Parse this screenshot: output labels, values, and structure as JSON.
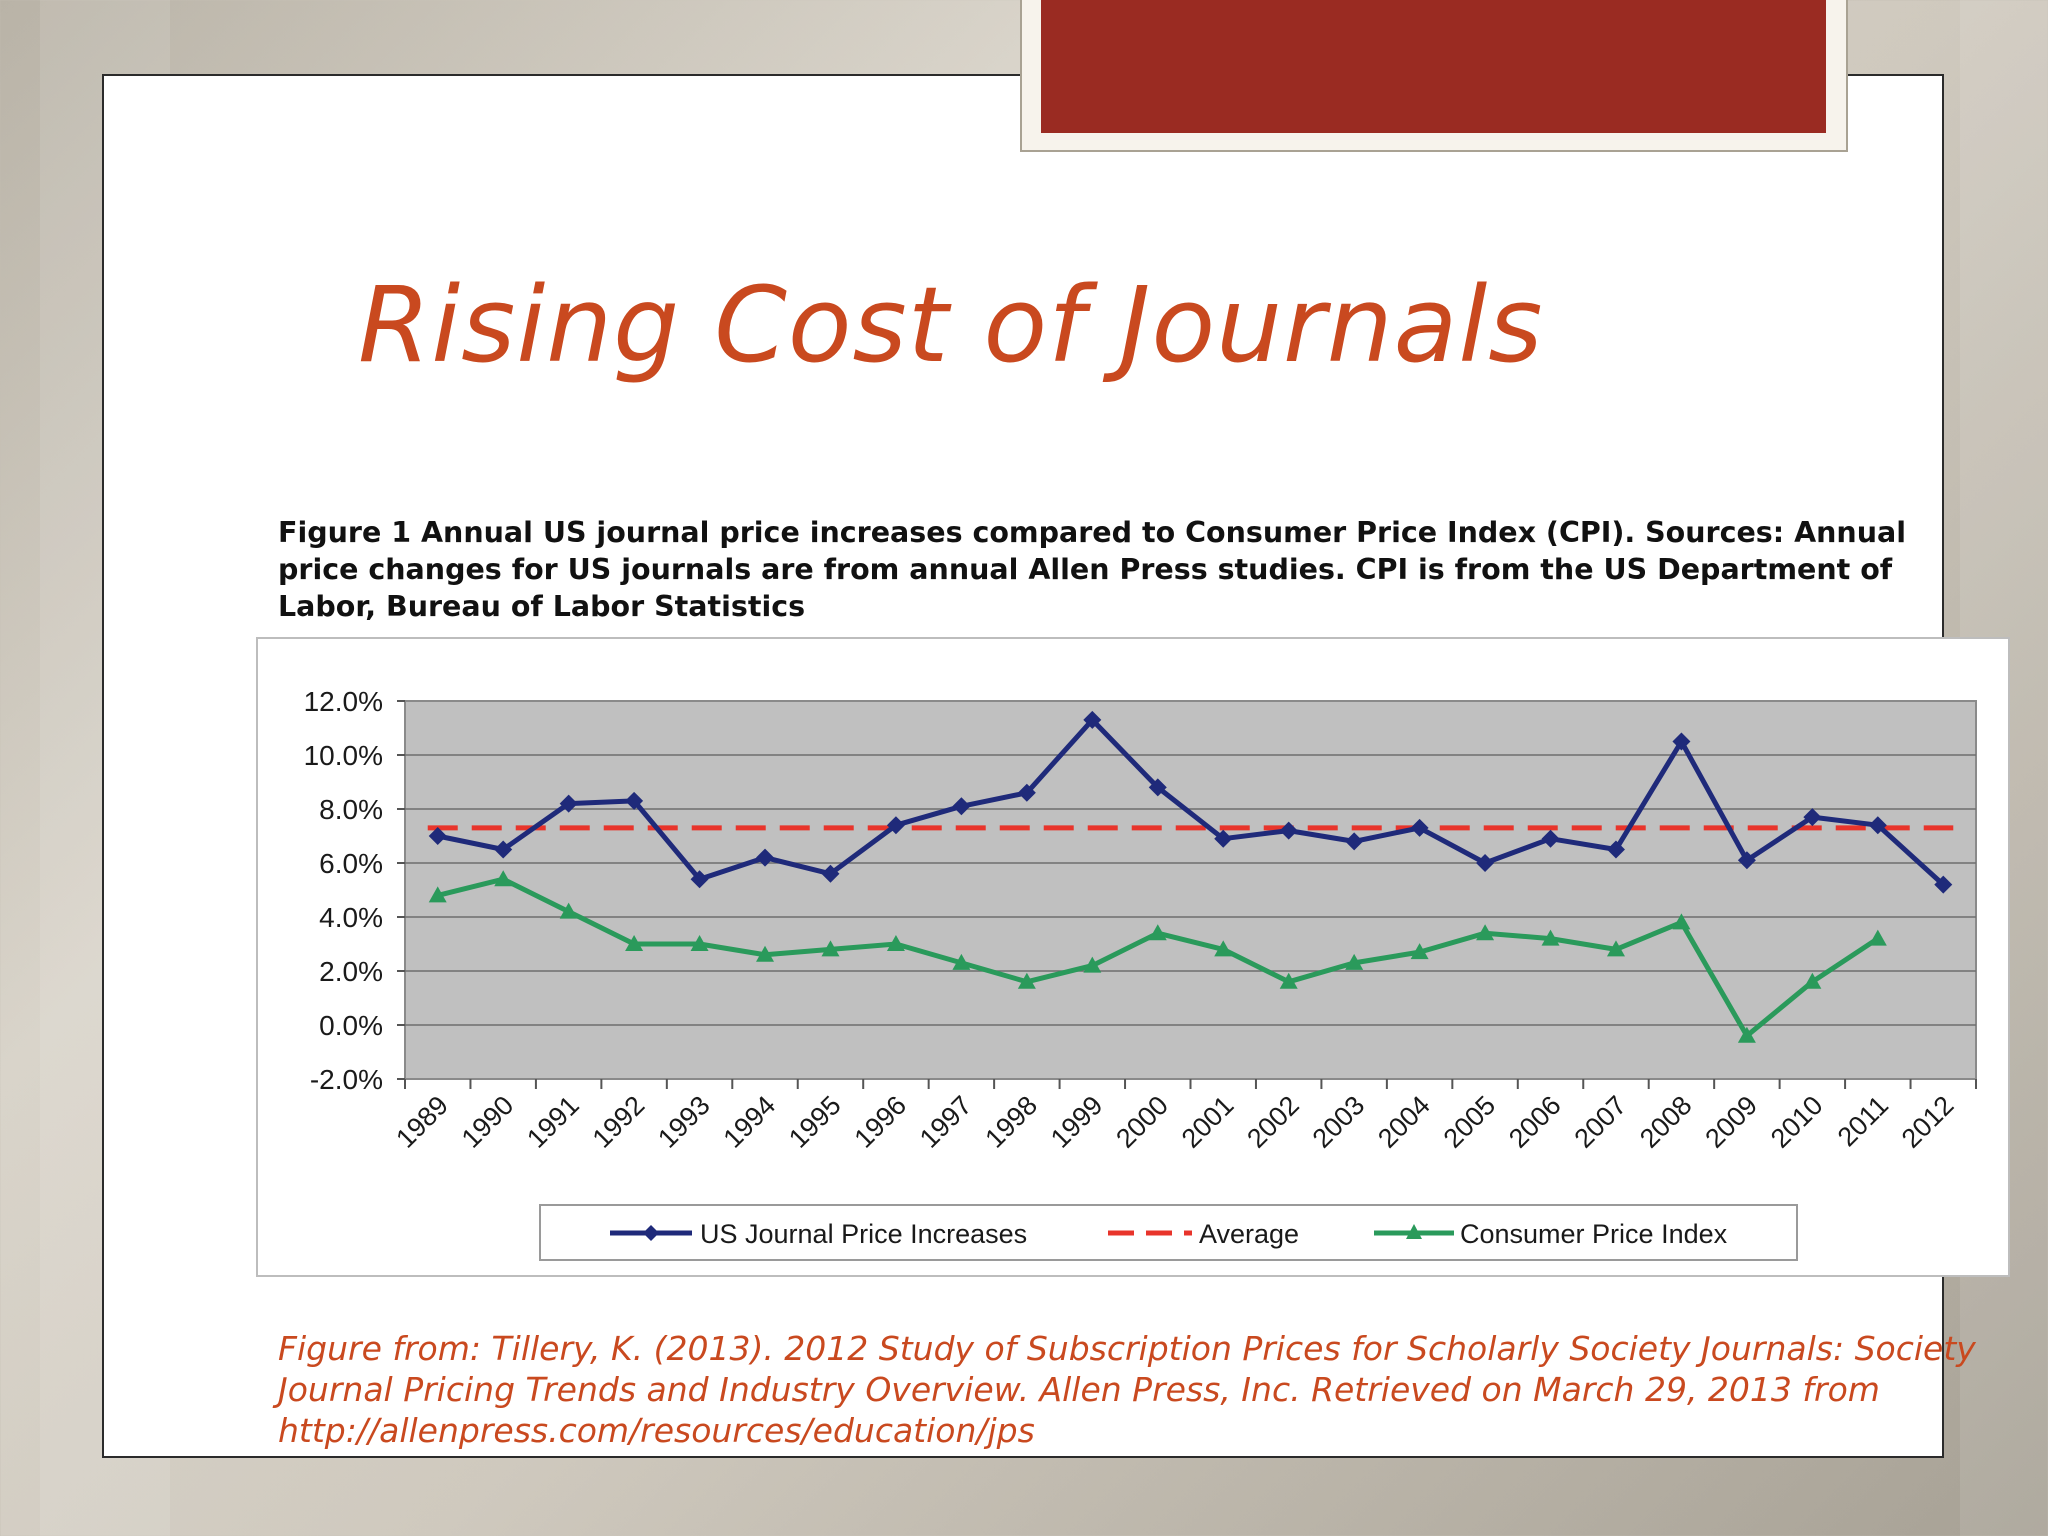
{
  "slide": {
    "title": "Rising Cost of Journals",
    "caption": "Figure 1 Annual US journal price increases compared to Consumer Price Index (CPI). Sources: Annual price changes for US journals are from annual Allen Press studies. CPI is from the US Department of Labor, Bureau of Labor Statistics",
    "source": "Figure from: Tillery, K. (2013). 2012 Study of Subscription Prices for Scholarly Society Journals: Society Journal Pricing Trends and Industry Overview. Allen Press, Inc. Retrieved on March 29, 2013 from http://allenpress.com/resources/education/jps"
  },
  "colors": {
    "title": "#c9491f",
    "accent_bar": "#9a2b22",
    "plot_bg": "#c0c0c0",
    "journal": "#1f2a7a",
    "average": "#e8342b",
    "cpi": "#2a9a5b"
  },
  "chart_data": {
    "type": "line",
    "title": "",
    "xlabel": "",
    "ylabel": "",
    "ylim": [
      -2.0,
      12.0
    ],
    "yticks": [
      "12.0%",
      "10.0%",
      "8.0%",
      "6.0%",
      "4.0%",
      "2.0%",
      "0.0%",
      "-2.0%"
    ],
    "grid": true,
    "legend_position": "bottom",
    "categories": [
      "1989",
      "1990",
      "1991",
      "1992",
      "1993",
      "1994",
      "1995",
      "1996",
      "1997",
      "1998",
      "1999",
      "2000",
      "2001",
      "2002",
      "2003",
      "2004",
      "2005",
      "2006",
      "2007",
      "2008",
      "2009",
      "2010",
      "2011",
      "2012"
    ],
    "series": [
      {
        "name": "US Journal Price Increases",
        "marker": "diamond",
        "style": "solid",
        "values": [
          7.0,
          6.5,
          8.2,
          8.3,
          5.4,
          6.2,
          5.6,
          7.4,
          8.1,
          8.6,
          11.3,
          8.8,
          6.9,
          7.2,
          6.8,
          7.3,
          6.0,
          6.9,
          6.5,
          10.5,
          6.1,
          7.7,
          7.4,
          5.2
        ]
      },
      {
        "name": "Average",
        "marker": "none",
        "style": "dashed",
        "values": [
          7.3,
          7.3,
          7.3,
          7.3,
          7.3,
          7.3,
          7.3,
          7.3,
          7.3,
          7.3,
          7.3,
          7.3,
          7.3,
          7.3,
          7.3,
          7.3,
          7.3,
          7.3,
          7.3,
          7.3,
          7.3,
          7.3,
          7.3,
          7.3
        ]
      },
      {
        "name": "Consumer Price Index",
        "marker": "triangle",
        "style": "solid",
        "values": [
          4.8,
          5.4,
          4.2,
          3.0,
          3.0,
          2.6,
          2.8,
          3.0,
          2.3,
          1.6,
          2.2,
          3.4,
          2.8,
          1.6,
          2.3,
          2.7,
          3.4,
          3.2,
          2.8,
          3.8,
          -0.4,
          1.6,
          3.2,
          null
        ]
      }
    ]
  }
}
